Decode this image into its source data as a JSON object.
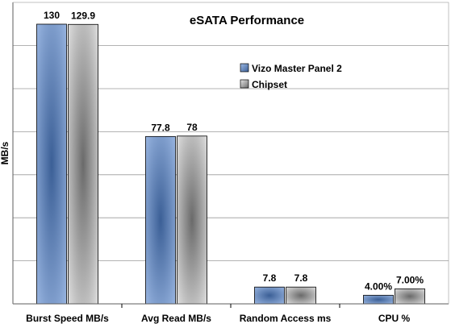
{
  "chart_data": {
    "type": "bar",
    "title": "eSATA Performance",
    "xlabel": "",
    "ylabel": "MB/s",
    "ylim": [
      0,
      130
    ],
    "grid": true,
    "legend_position": "top-right",
    "categories": [
      "Burst Speed MB/s",
      "Avg Read MB/s",
      "Random Access ms",
      "CPU %"
    ],
    "series": [
      {
        "name": "Vizo Master Panel 2",
        "color": "#7f9fd0",
        "values": [
          130,
          77.8,
          7.8,
          4.0
        ],
        "labels": [
          "130",
          "77.8",
          "7.8",
          "4.00%"
        ]
      },
      {
        "name": "Chipset",
        "color": "#b9b9b9",
        "values": [
          129.9,
          78,
          7.8,
          7.0
        ],
        "labels": [
          "129.9",
          "78",
          "7.8",
          "7.00%"
        ]
      }
    ]
  },
  "colors": {
    "series1_dark": "#3b5f96",
    "series1_light": "#9fbbe6",
    "series2_dark": "#6a6a6a",
    "series2_light": "#e6e6e6",
    "grid": "#9a9a9a",
    "axis": "#000000"
  }
}
